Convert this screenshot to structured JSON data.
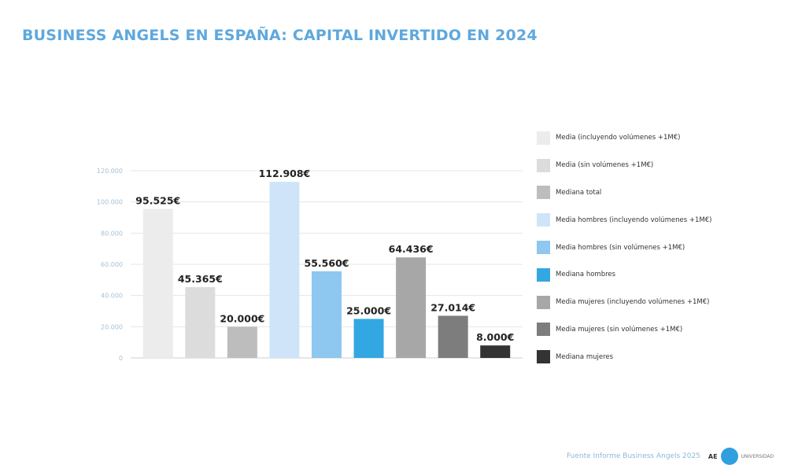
{
  "title": "BUSINESS ANGELS EN ESPAÑA: CAPITAL INVERTIDO EN 2024",
  "footer": {
    "source": "Fuente Informe Business Angels 2025",
    "logo_text": "AE",
    "logo_sub": "UNIVERSIDAD"
  },
  "chart_data": {
    "type": "bar",
    "title": "BUSINESS ANGELS EN ESPAÑA: CAPITAL INVERTIDO EN 2024",
    "xlabel": "",
    "ylabel": "",
    "ylim": [
      0,
      120000
    ],
    "yticks": [
      0,
      20000,
      40000,
      60000,
      80000,
      100000,
      120000
    ],
    "ytick_labels": [
      "0",
      "20.000",
      "40.000",
      "60.000",
      "80.000",
      "100.000",
      "120.000"
    ],
    "grid": true,
    "legend_position": "right",
    "categories": [
      "Media (incluyendo volúmenes +1M€)",
      "Media (sin volúmenes +1M€)",
      "Mediana total",
      "Media hombres (incluyendo volúmenes +1M€)",
      "Media hombres (sin volúmenes +1M€)",
      "Mediana hombres",
      "Media mujeres (incluyendo volúmenes +1M€)",
      "Media mujeres (sin volúmenes +1M€)",
      "Mediana mujeres"
    ],
    "values": [
      95525,
      45365,
      20000,
      112908,
      55560,
      25000,
      64436,
      27014,
      8000
    ],
    "data_labels": [
      "95.525€",
      "45.365€",
      "20.000€",
      "112.908€",
      "55.560€",
      "25.000€",
      "64.436€",
      "27.014€",
      "8.000€"
    ],
    "colors": [
      "#ececec",
      "#dcdcdc",
      "#bdbdbd",
      "#cfe4f8",
      "#8ec7ef",
      "#33a7e2",
      "#a7a7a7",
      "#7d7d7d",
      "#333333"
    ]
  }
}
